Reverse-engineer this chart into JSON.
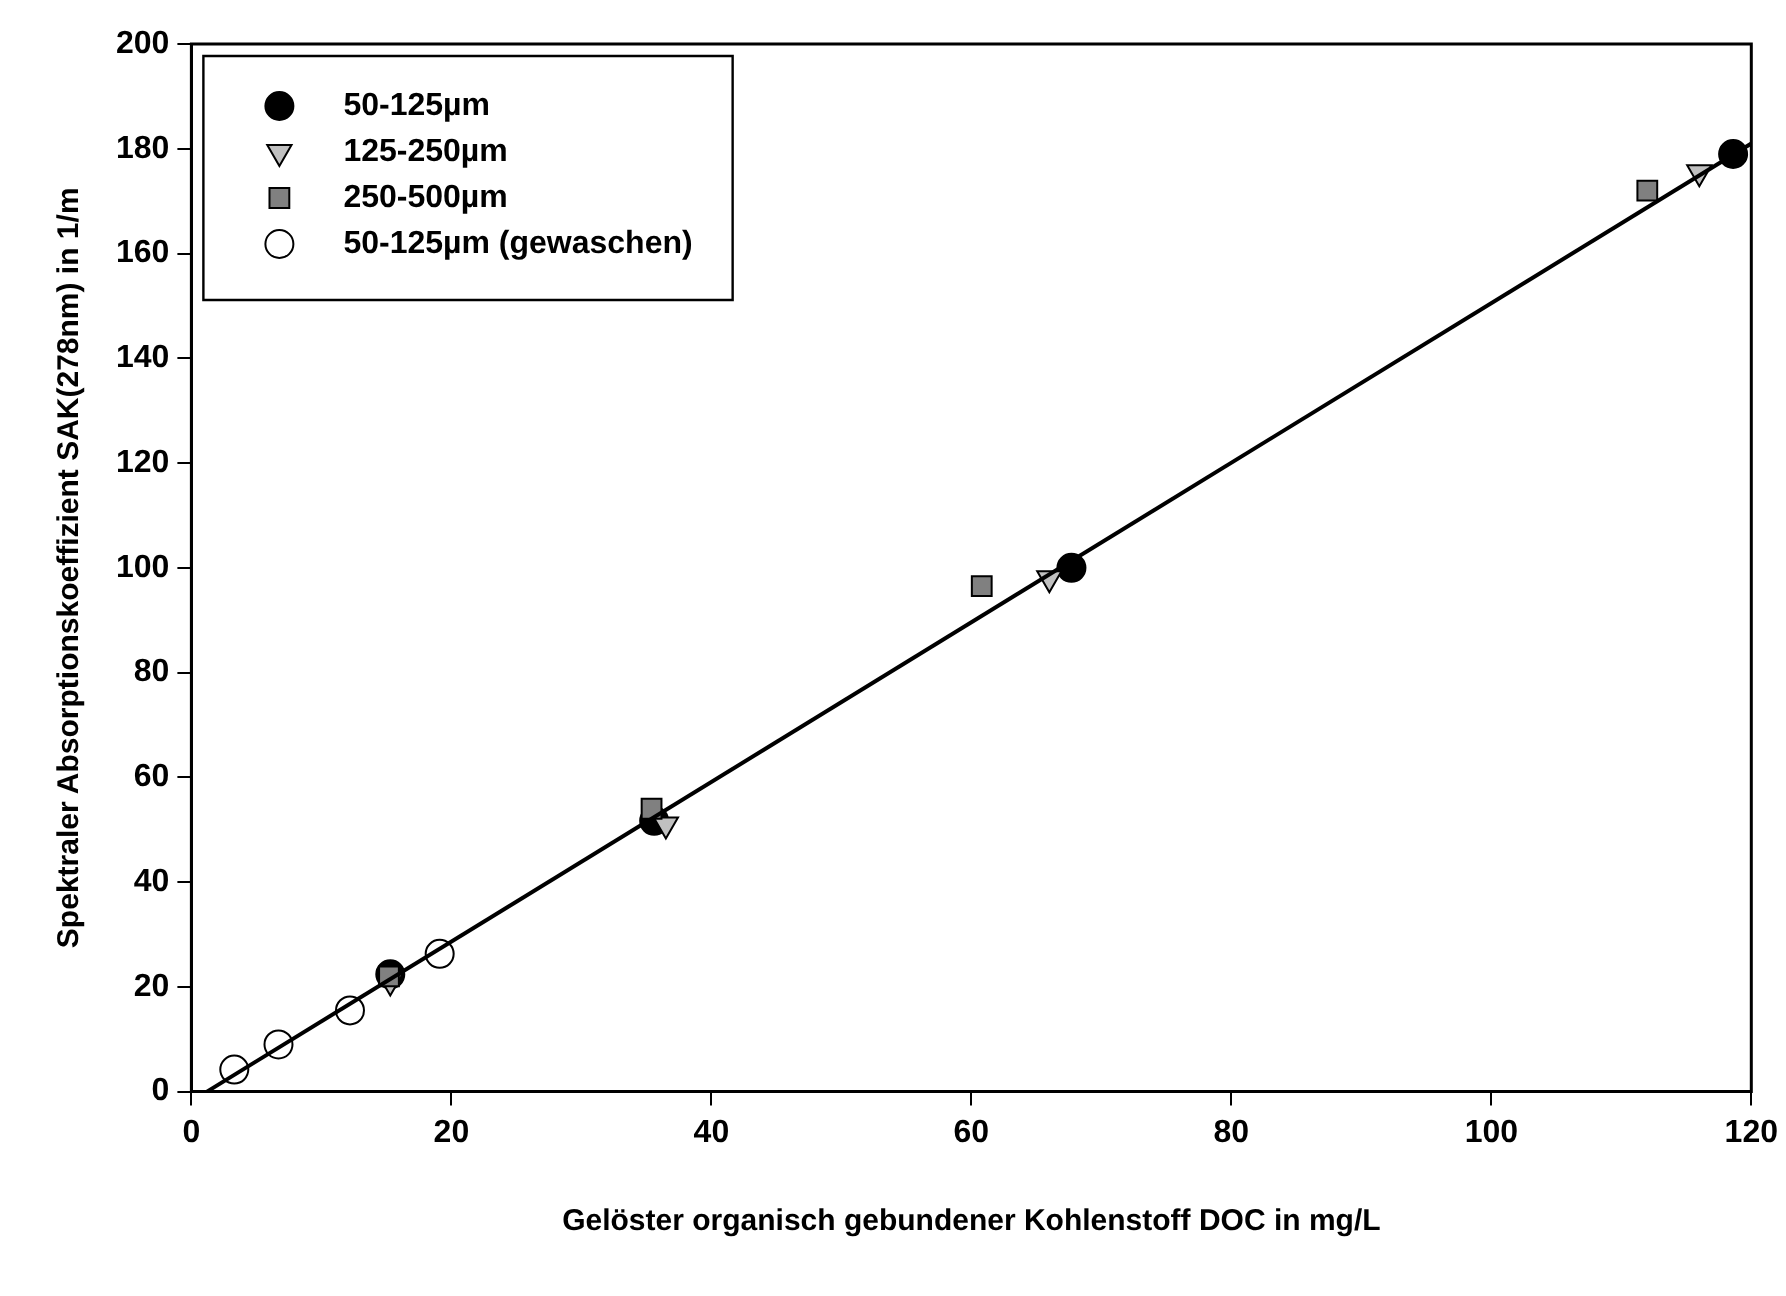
{
  "chart_data": {
    "type": "scatter",
    "xlabel": "Gelöster organisch gebundener Kohlenstoff DOC in mg/L",
    "ylabel": "Spektraler Absorptionskoeffizient SAK(278nm) in 1/m",
    "xlim": [
      0,
      120
    ],
    "xticks": [
      0,
      20,
      40,
      60,
      80,
      100,
      120
    ],
    "ylim": [
      0,
      200
    ],
    "yticks": [
      0,
      20,
      40,
      60,
      80,
      100,
      120,
      140,
      160,
      180,
      200
    ],
    "grid": false,
    "legend": "top left",
    "series": [
      {
        "name": "50-125µm",
        "color": "#000000",
        "marker": "circle",
        "x": [
          15.3,
          35.6,
          67.7,
          118.6
        ],
        "values": [
          22.4,
          51.7,
          100,
          179
        ]
      },
      {
        "name": "125-250µm",
        "color": "#c0c0c0",
        "marker": "triangle",
        "x": [
          15.3,
          36.5,
          66,
          116
        ],
        "values": [
          21,
          51,
          98,
          175.5
        ]
      },
      {
        "name": "250-500µm",
        "color": "#808080",
        "marker": "square",
        "x": [
          15.2,
          35.4,
          60.8,
          112
        ],
        "values": [
          22,
          54,
          96.5,
          172
        ]
      },
      {
        "name": "50-125µm (gewaschen)",
        "color": "#ffffff",
        "marker": "circle",
        "x": [
          3.3,
          6.7,
          12.2,
          19.1
        ],
        "values": [
          4.2,
          9,
          15.5,
          26.3
        ]
      },
      {
        "type": "line",
        "color": "#000000",
        "marker": "none",
        "line_style": "solid",
        "x": [
          1.2,
          120
        ],
        "values": [
          0,
          181
        ]
      }
    ]
  }
}
